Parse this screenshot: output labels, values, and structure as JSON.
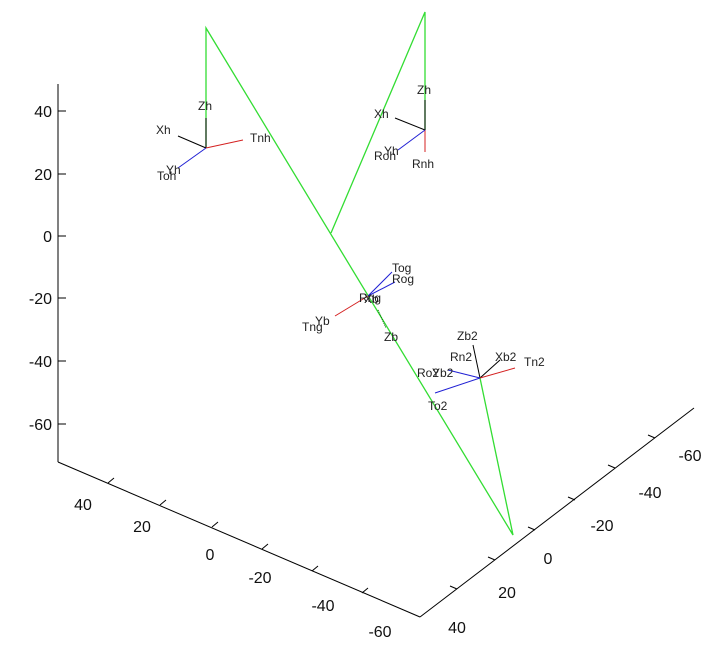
{
  "chart_data": {
    "type": "line3d",
    "title": "",
    "xlabel": "",
    "ylabel": "",
    "zlabel": "",
    "grid": false,
    "z_ticks": [
      "40",
      "20",
      "0",
      "-20",
      "-40",
      "-60"
    ],
    "left_floor_ticks": [
      "40",
      "20",
      "0",
      "-20",
      "-40",
      "-60"
    ],
    "right_floor_ticks": [
      "40",
      "20",
      "0",
      "-20",
      "-40",
      "-60"
    ],
    "colors": {
      "links": "#33dd33",
      "frame_x": "#d42020",
      "frame_y": "#2020d4",
      "frame_z": "#000000",
      "axes": "#000000"
    },
    "frames": [
      {
        "id": "left-hip",
        "labels": [
          {
            "text": "Zh"
          },
          {
            "text": "Xh"
          },
          {
            "text": "Tnh"
          },
          {
            "text": "Yh"
          },
          {
            "text": "Toh"
          }
        ]
      },
      {
        "id": "right-hip",
        "labels": [
          {
            "text": "Zh"
          },
          {
            "text": "Xh"
          },
          {
            "text": "Yh"
          },
          {
            "text": "Roh"
          },
          {
            "text": "Rnh"
          }
        ]
      },
      {
        "id": "body",
        "labels": [
          {
            "text": "Tog"
          },
          {
            "text": "Rog"
          },
          {
            "text": "Rng"
          },
          {
            "text": "Xb"
          },
          {
            "text": "Yb"
          },
          {
            "text": "Tng"
          },
          {
            "text": "Zb"
          }
        ]
      },
      {
        "id": "foot",
        "labels": [
          {
            "text": "Zb2"
          },
          {
            "text": "Rn2"
          },
          {
            "text": "Xb2"
          },
          {
            "text": "Tn2"
          },
          {
            "text": "Ro2"
          },
          {
            "text": "Yb2"
          },
          {
            "text": "To2"
          }
        ]
      }
    ]
  }
}
